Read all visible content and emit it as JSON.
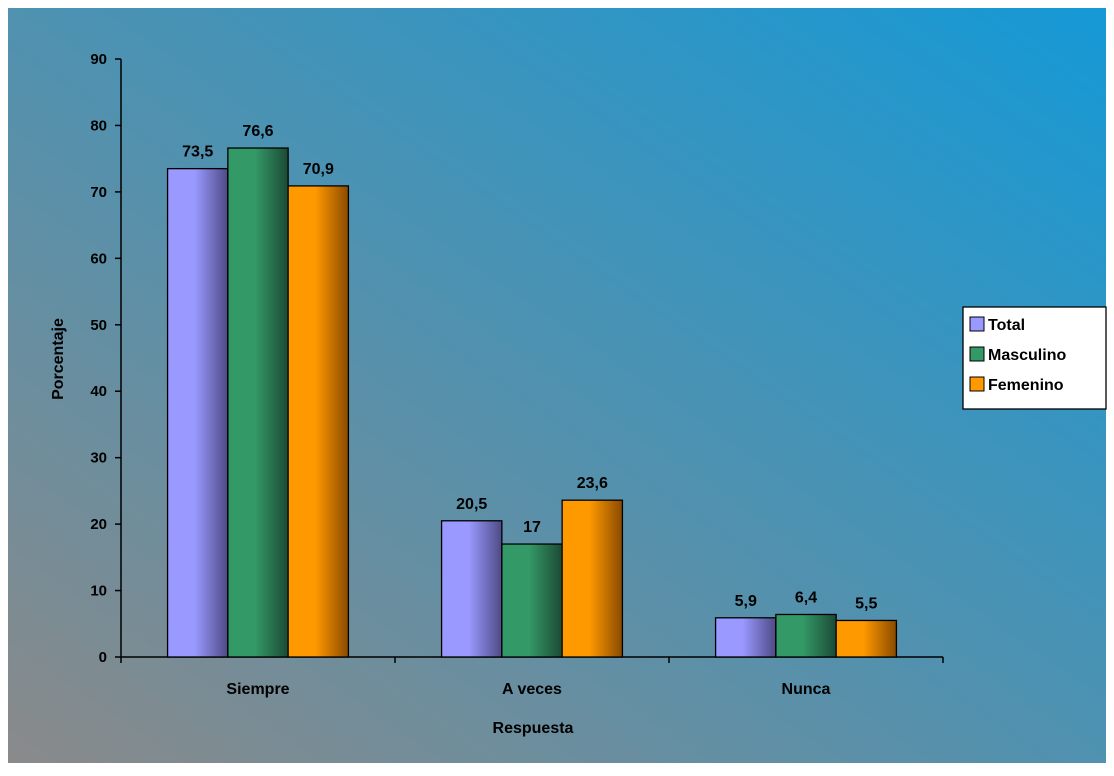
{
  "chart_data": {
    "type": "bar",
    "title": "",
    "xlabel": "Respuesta",
    "ylabel": "Porcentaje",
    "categories": [
      "Siempre",
      "A veces",
      "Nunca"
    ],
    "ylim": [
      0,
      90
    ],
    "yticks": [
      "0",
      "10",
      "20",
      "30",
      "40",
      "50",
      "60",
      "70",
      "80",
      "90"
    ],
    "legend_position": "right",
    "grid": false,
    "series": [
      {
        "name": "Total",
        "values": [
          73.5,
          20.5,
          5.9
        ],
        "labels": [
          "73,5",
          "20,5",
          "5,9"
        ],
        "color": "#9999ff",
        "shade": "#4f4a86"
      },
      {
        "name": "Masculino",
        "values": [
          76.6,
          17,
          6.4
        ],
        "labels": [
          "76,6",
          "17",
          "6,4"
        ],
        "color": "#339966",
        "shade": "#1c4a35"
      },
      {
        "name": "Femenino",
        "values": [
          70.9,
          23.6,
          5.5
        ],
        "labels": [
          "70,9",
          "23,6",
          "5,5"
        ],
        "color": "#ff9900",
        "shade": "#8a4a00"
      }
    ]
  },
  "colors": {
    "background_start": "#8a8a8a",
    "background_end": "#1599d6"
  }
}
